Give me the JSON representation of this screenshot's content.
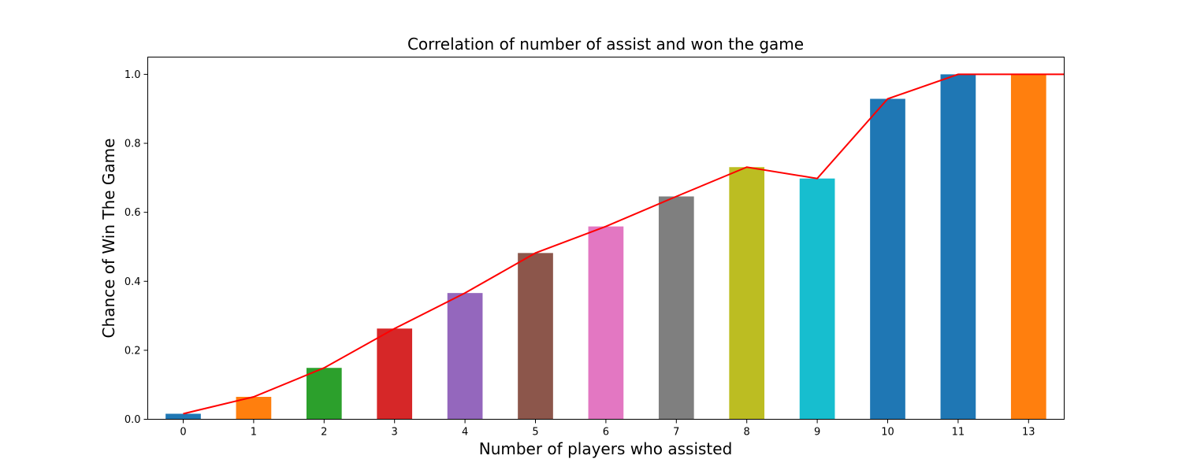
{
  "chart_data": {
    "type": "bar",
    "title": "Correlation of number of assist and won the game",
    "xlabel": "Number of players who assisted",
    "ylabel": "Chance of Win The Game",
    "categories": [
      "0",
      "1",
      "2",
      "3",
      "4",
      "5",
      "6",
      "7",
      "8",
      "9",
      "10",
      "11",
      "13"
    ],
    "values": [
      0.016,
      0.065,
      0.149,
      0.263,
      0.366,
      0.482,
      0.559,
      0.646,
      0.731,
      0.698,
      0.929,
      1.0,
      1.0
    ],
    "line_values": [
      0.016,
      0.065,
      0.149,
      0.263,
      0.366,
      0.482,
      0.559,
      0.646,
      0.731,
      0.698,
      0.929,
      1.0,
      1.0
    ],
    "bar_colors": [
      "#1f77b4",
      "#ff7f0e",
      "#2ca02c",
      "#d62728",
      "#9467bd",
      "#8c564b",
      "#e377c2",
      "#7f7f7f",
      "#bcbd22",
      "#17becf",
      "#1f77b4",
      "#1f77b4",
      "#ff7f0e"
    ],
    "line_color": "#ff0000",
    "ylim": [
      0,
      1.05
    ],
    "yticks": [
      "0.0",
      "0.2",
      "0.4",
      "0.6",
      "0.8",
      "1.0"
    ],
    "grid": false,
    "legend": "none"
  }
}
